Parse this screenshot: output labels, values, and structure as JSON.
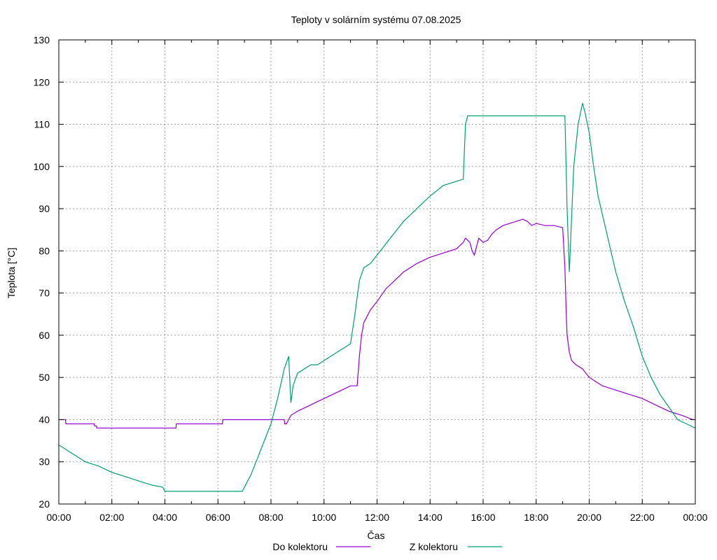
{
  "chart_data": {
    "type": "line",
    "title": "Teploty v solárním systému 07.08.2025",
    "xlabel": "Čas",
    "ylabel": "Teplota [°C]",
    "ylim": [
      20,
      130
    ],
    "xlim": [
      "00:00",
      "24:00"
    ],
    "grid": true,
    "legend_placement": "bottom-center",
    "x_tick_labels": [
      "00:00",
      "02:00",
      "04:00",
      "06:00",
      "08:00",
      "10:00",
      "12:00",
      "14:00",
      "16:00",
      "18:00",
      "20:00",
      "22:00",
      "00:00"
    ],
    "y_tick_labels": [
      "20",
      "30",
      "40",
      "50",
      "60",
      "70",
      "80",
      "90",
      "100",
      "110",
      "120",
      "130"
    ],
    "series": [
      {
        "name": "Do kolektoru",
        "color": "#9400d3",
        "x": [
          "00:00",
          "00:15",
          "00:16",
          "01:20",
          "01:21",
          "01:25",
          "01:26",
          "04:25",
          "04:26",
          "06:10",
          "06:11",
          "08:30",
          "08:31",
          "08:35",
          "08:40",
          "08:45",
          "09:00",
          "09:20",
          "09:40",
          "10:00",
          "10:20",
          "10:40",
          "11:00",
          "11:15",
          "11:20",
          "11:25",
          "11:30",
          "11:45",
          "12:00",
          "12:20",
          "12:40",
          "13:00",
          "13:30",
          "14:00",
          "14:30",
          "15:00",
          "15:15",
          "15:20",
          "15:30",
          "15:35",
          "15:40",
          "15:50",
          "16:00",
          "16:10",
          "16:20",
          "16:30",
          "16:45",
          "17:00",
          "17:15",
          "17:30",
          "17:40",
          "17:50",
          "18:00",
          "18:20",
          "18:40",
          "19:00",
          "19:05",
          "19:08",
          "19:10",
          "19:15",
          "19:20",
          "19:30",
          "19:45",
          "20:00",
          "20:15",
          "20:30",
          "21:00",
          "21:30",
          "22:00",
          "22:30",
          "23:00",
          "23:30",
          "23:55",
          "24:00"
        ],
        "values": [
          40,
          40,
          39,
          39,
          38.5,
          38.5,
          38,
          38,
          39,
          39,
          40,
          40,
          39,
          39,
          40,
          41,
          42,
          43,
          44,
          45,
          46,
          47,
          48,
          48,
          55,
          60,
          63,
          66,
          68,
          71,
          73,
          75,
          77,
          78.5,
          79.5,
          80.5,
          82,
          83,
          82,
          80,
          79,
          83,
          82,
          82.5,
          84,
          85,
          86,
          86.5,
          87,
          87.5,
          87,
          86,
          86.5,
          86,
          86,
          85.5,
          76,
          65,
          60,
          56,
          54,
          53,
          52,
          50,
          49,
          48,
          47,
          46,
          45,
          43.5,
          42,
          41,
          40,
          40
        ]
      },
      {
        "name": "Z kolektoru",
        "color": "#009e73",
        "x": [
          "00:00",
          "00:30",
          "01:00",
          "01:30",
          "02:00",
          "02:30",
          "03:00",
          "03:30",
          "03:55",
          "04:00",
          "06:55",
          "07:00",
          "07:15",
          "07:30",
          "07:45",
          "08:00",
          "08:15",
          "08:30",
          "08:40",
          "08:45",
          "08:50",
          "09:00",
          "09:15",
          "09:30",
          "09:45",
          "10:00",
          "10:15",
          "10:30",
          "10:45",
          "11:00",
          "11:10",
          "11:20",
          "11:30",
          "11:45",
          "12:00",
          "12:15",
          "12:30",
          "12:45",
          "13:00",
          "13:30",
          "14:00",
          "14:30",
          "15:00",
          "15:15",
          "15:20",
          "15:25",
          "19:05",
          "19:10",
          "19:15",
          "19:25",
          "19:35",
          "19:45",
          "19:50",
          "20:00",
          "20:10",
          "20:20",
          "20:40",
          "21:00",
          "21:20",
          "21:40",
          "22:00",
          "22:20",
          "22:40",
          "23:00",
          "23:20",
          "23:40",
          "24:00"
        ],
        "values": [
          34,
          32,
          30,
          29,
          27.5,
          26.5,
          25.5,
          24.5,
          24,
          23,
          23,
          24,
          27,
          31,
          35,
          39,
          45,
          52,
          55,
          44,
          48,
          51,
          52,
          53,
          53,
          54,
          55,
          56,
          57,
          58,
          65,
          73,
          76,
          77,
          79,
          81,
          83,
          85,
          87,
          90,
          93,
          95.5,
          96.5,
          97,
          110,
          112,
          112,
          90,
          75,
          100,
          110,
          115,
          113,
          108,
          100,
          93,
          84,
          75,
          68,
          62,
          55,
          50,
          46,
          43,
          40,
          39,
          38
        ]
      }
    ]
  }
}
